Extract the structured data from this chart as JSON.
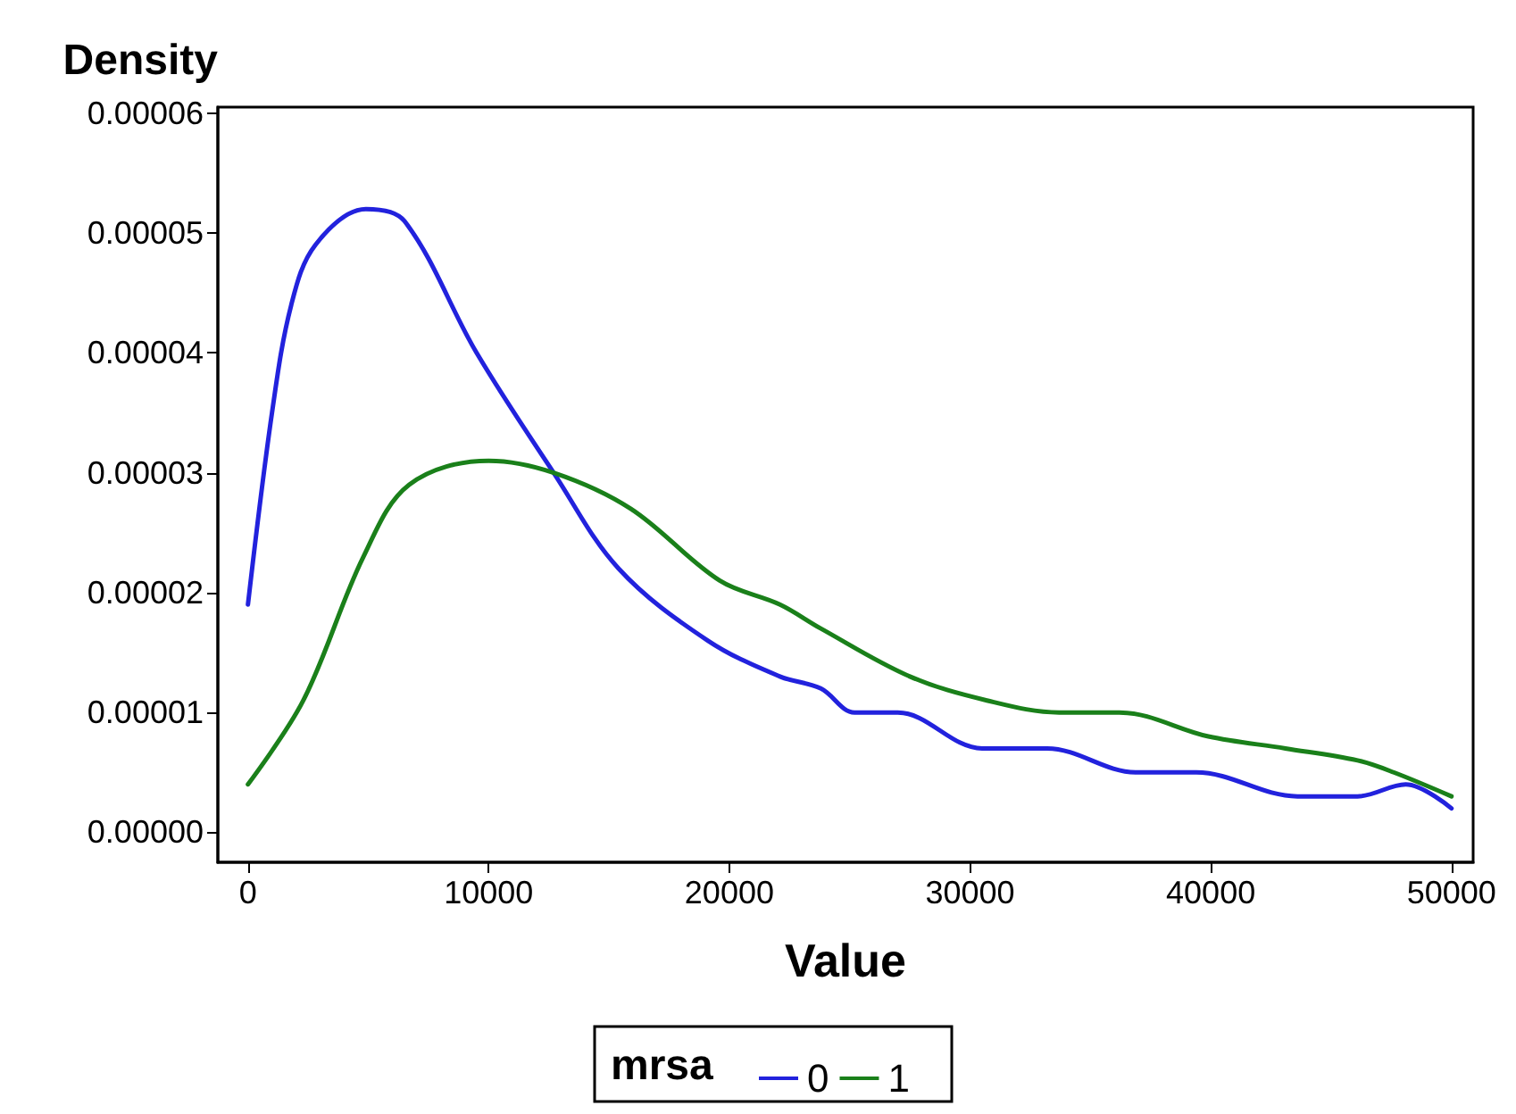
{
  "chart_data": {
    "type": "line",
    "xlabel": "Value",
    "ylabel": "Density",
    "legend_title": "mrsa",
    "legend": "bottom",
    "grid": false,
    "marker": "none",
    "line_style": "solid",
    "xlim": [
      -1250,
      50900
    ],
    "ylim": [
      -2.5e-06,
      6.05e-05
    ],
    "xticks": [
      0,
      10000,
      20000,
      30000,
      40000,
      50000
    ],
    "yticks": [
      {
        "value": 0,
        "label": "0.00000"
      },
      {
        "value": 1e-05,
        "label": "0.00001"
      },
      {
        "value": 2e-05,
        "label": "0.00002"
      },
      {
        "value": 3e-05,
        "label": "0.00003"
      },
      {
        "value": 4e-05,
        "label": "0.00004"
      },
      {
        "value": 5e-05,
        "label": "0.00005"
      },
      {
        "value": 6e-05,
        "label": "0.00006"
      }
    ],
    "series": [
      {
        "name": "0",
        "color": "#2222dd",
        "x": [
          0,
          1000,
          1800,
          2800,
          4900,
          6500,
          9500,
          12700,
          15400,
          19100,
          22100,
          23800,
          25200,
          27000,
          30500,
          33200,
          36900,
          39400,
          43600,
          46100,
          48100,
          50000
        ],
        "values": [
          1.9e-05,
          3.5e-05,
          4.4e-05,
          4.9e-05,
          5.2e-05,
          5.1e-05,
          4e-05,
          3e-05,
          2.2e-05,
          1.6e-05,
          1.3e-05,
          1.2e-05,
          1e-05,
          1e-05,
          7e-06,
          7e-06,
          5e-06,
          5e-06,
          3e-06,
          3e-06,
          4e-06,
          2e-06
        ]
      },
      {
        "name": "1",
        "color": "#1a801a",
        "x": [
          0,
          2300,
          4800,
          6700,
          10000,
          12700,
          15900,
          19600,
          22100,
          23800,
          27500,
          30700,
          33700,
          36200,
          39900,
          43100,
          46100,
          47600,
          50000
        ],
        "values": [
          4e-06,
          1.1e-05,
          2.3e-05,
          2.9e-05,
          3.1e-05,
          3e-05,
          2.7e-05,
          2.1e-05,
          1.9e-05,
          1.7e-05,
          1.3e-05,
          1.1e-05,
          1e-05,
          1e-05,
          8e-06,
          7e-06,
          6e-06,
          5e-06,
          3e-06
        ]
      }
    ]
  }
}
